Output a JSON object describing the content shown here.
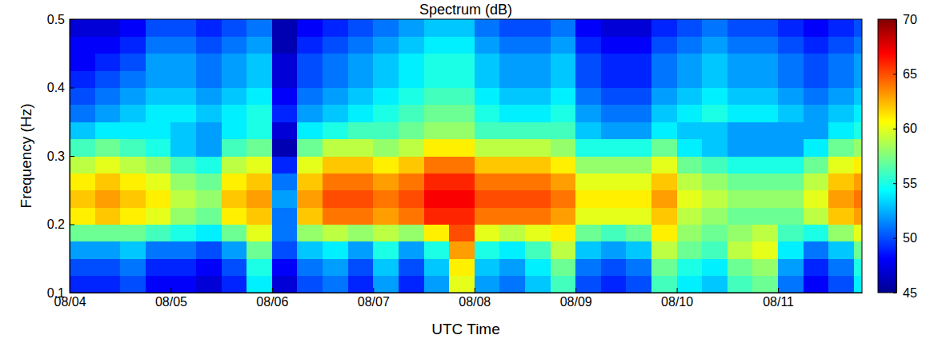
{
  "chart_data": {
    "type": "heatmap",
    "title": "Spectrum (dB)",
    "x_label": "UTC Time",
    "y_label": "Frequency (Hz)",
    "x": [
      0.125,
      0.375,
      0.625,
      0.875,
      1.125,
      1.375,
      1.625,
      1.875,
      2.125,
      2.375,
      2.625,
      2.875,
      3.125,
      3.375,
      3.625,
      3.875,
      4.125,
      4.375,
      4.625,
      4.875,
      5.125,
      5.375,
      5.625,
      5.875,
      6.125,
      6.375,
      6.625,
      6.875,
      7.125,
      7.375,
      7.625,
      7.875
    ],
    "y": [
      0.1125,
      0.1375,
      0.1625,
      0.1875,
      0.2125,
      0.2375,
      0.2625,
      0.2875,
      0.3125,
      0.3375,
      0.3625,
      0.3875,
      0.4125,
      0.4375,
      0.4625,
      0.4875
    ],
    "z": [
      [
        49,
        49,
        50,
        48,
        48,
        47,
        49,
        54,
        47,
        50,
        51,
        49,
        52,
        49,
        52,
        60,
        52,
        51,
        53,
        56,
        50,
        49,
        50,
        56,
        54,
        53,
        56,
        57,
        51,
        48,
        50,
        54
      ],
      [
        50,
        50,
        51,
        49,
        49,
        48,
        50,
        55,
        48,
        51,
        52,
        50,
        53,
        50,
        53,
        61,
        53,
        52,
        54,
        57,
        51,
        50,
        51,
        57,
        55,
        54,
        57,
        58,
        52,
        49,
        51,
        55
      ],
      [
        52,
        52,
        53,
        51,
        51,
        50,
        52,
        57,
        50,
        53,
        54,
        52,
        55,
        52,
        55,
        63,
        55,
        54,
        56,
        59,
        53,
        52,
        53,
        59,
        57,
        56,
        59,
        60,
        54,
        51,
        53,
        57
      ],
      [
        57,
        57,
        57,
        56,
        55,
        54,
        57,
        60,
        51,
        58,
        59,
        58,
        59,
        58,
        61,
        65,
        60,
        59,
        60,
        61,
        57,
        56,
        57,
        61,
        58,
        57,
        58,
        59,
        56,
        55,
        58,
        60
      ],
      [
        61,
        62,
        61,
        60,
        58,
        57,
        61,
        62,
        51,
        62,
        64,
        64,
        63,
        64,
        66,
        66,
        64,
        64,
        64,
        63,
        60,
        60,
        60,
        62,
        59,
        58,
        57,
        57,
        57,
        59,
        62,
        63
      ],
      [
        62,
        63,
        62,
        61,
        59,
        58,
        62,
        63,
        52,
        63,
        65,
        65,
        64,
        65,
        67,
        67,
        65,
        65,
        65,
        64,
        61,
        61,
        61,
        63,
        60,
        59,
        58,
        58,
        58,
        60,
        63,
        64
      ],
      [
        61,
        62,
        61,
        60,
        58,
        57,
        61,
        62,
        51,
        62,
        64,
        64,
        63,
        64,
        66,
        66,
        64,
        64,
        64,
        63,
        60,
        60,
        60,
        62,
        59,
        58,
        57,
        57,
        57,
        59,
        62,
        63
      ],
      [
        59,
        60,
        59,
        58,
        56,
        55,
        59,
        60,
        49,
        60,
        62,
        62,
        61,
        62,
        64,
        64,
        62,
        62,
        62,
        61,
        58,
        58,
        58,
        60,
        57,
        56,
        55,
        55,
        55,
        57,
        60,
        61
      ],
      [
        56,
        57,
        56,
        55,
        53,
        52,
        56,
        57,
        46,
        57,
        59,
        59,
        58,
        59,
        61,
        61,
        59,
        59,
        59,
        58,
        55,
        55,
        55,
        57,
        54,
        53,
        52,
        52,
        52,
        54,
        57,
        58
      ],
      [
        53,
        54,
        54,
        54,
        53,
        52,
        54,
        55,
        47,
        54,
        55,
        56,
        56,
        57,
        58,
        58,
        56,
        56,
        56,
        56,
        53,
        52,
        52,
        54,
        53,
        53,
        52,
        52,
        52,
        52,
        54,
        55
      ],
      [
        51,
        52,
        53,
        54,
        54,
        53,
        54,
        55,
        49,
        52,
        53,
        54,
        55,
        56,
        57,
        57,
        55,
        54,
        54,
        55,
        52,
        51,
        51,
        53,
        54,
        55,
        54,
        54,
        53,
        52,
        53,
        54
      ],
      [
        50,
        51,
        52,
        53,
        53,
        52,
        53,
        54,
        48,
        51,
        52,
        53,
        54,
        55,
        56,
        56,
        54,
        53,
        53,
        54,
        51,
        50,
        50,
        52,
        53,
        54,
        53,
        53,
        52,
        51,
        52,
        53
      ],
      [
        49,
        50,
        51,
        52,
        52,
        51,
        52,
        53,
        47,
        50,
        51,
        52,
        53,
        54,
        55,
        55,
        53,
        52,
        52,
        53,
        50,
        49,
        49,
        51,
        52,
        53,
        52,
        52,
        51,
        50,
        51,
        52
      ],
      [
        48,
        49,
        50,
        52,
        52,
        51,
        52,
        53,
        47,
        50,
        51,
        52,
        53,
        54,
        55,
        55,
        53,
        52,
        52,
        53,
        50,
        49,
        49,
        51,
        52,
        53,
        52,
        52,
        51,
        50,
        51,
        52
      ],
      [
        48,
        48,
        49,
        51,
        51,
        50,
        51,
        52,
        46,
        49,
        50,
        51,
        52,
        53,
        54,
        54,
        52,
        51,
        51,
        52,
        49,
        48,
        48,
        50,
        51,
        52,
        51,
        51,
        50,
        49,
        50,
        51
      ],
      [
        47,
        47,
        48,
        50,
        50,
        49,
        50,
        51,
        46,
        48,
        49,
        50,
        51,
        52,
        53,
        53,
        51,
        50,
        50,
        51,
        48,
        47,
        47,
        49,
        50,
        51,
        50,
        50,
        49,
        48,
        49,
        50
      ]
    ],
    "xlim": [
      0,
      7.83
    ],
    "xticks": [
      {
        "value": 0,
        "label": "08/04"
      },
      {
        "value": 1,
        "label": "08/05"
      },
      {
        "value": 2,
        "label": "08/06"
      },
      {
        "value": 3,
        "label": "08/07"
      },
      {
        "value": 4,
        "label": "08/08"
      },
      {
        "value": 5,
        "label": "08/09"
      },
      {
        "value": 6,
        "label": "08/10"
      },
      {
        "value": 7,
        "label": "08/11"
      }
    ],
    "ylim": [
      0.1,
      0.5
    ],
    "yticks": [
      0.1,
      0.2,
      0.3,
      0.4,
      0.5
    ],
    "colorbar_lim": [
      45,
      70
    ],
    "colorbar_ticks": [
      45,
      50,
      55,
      60,
      65,
      70
    ]
  }
}
